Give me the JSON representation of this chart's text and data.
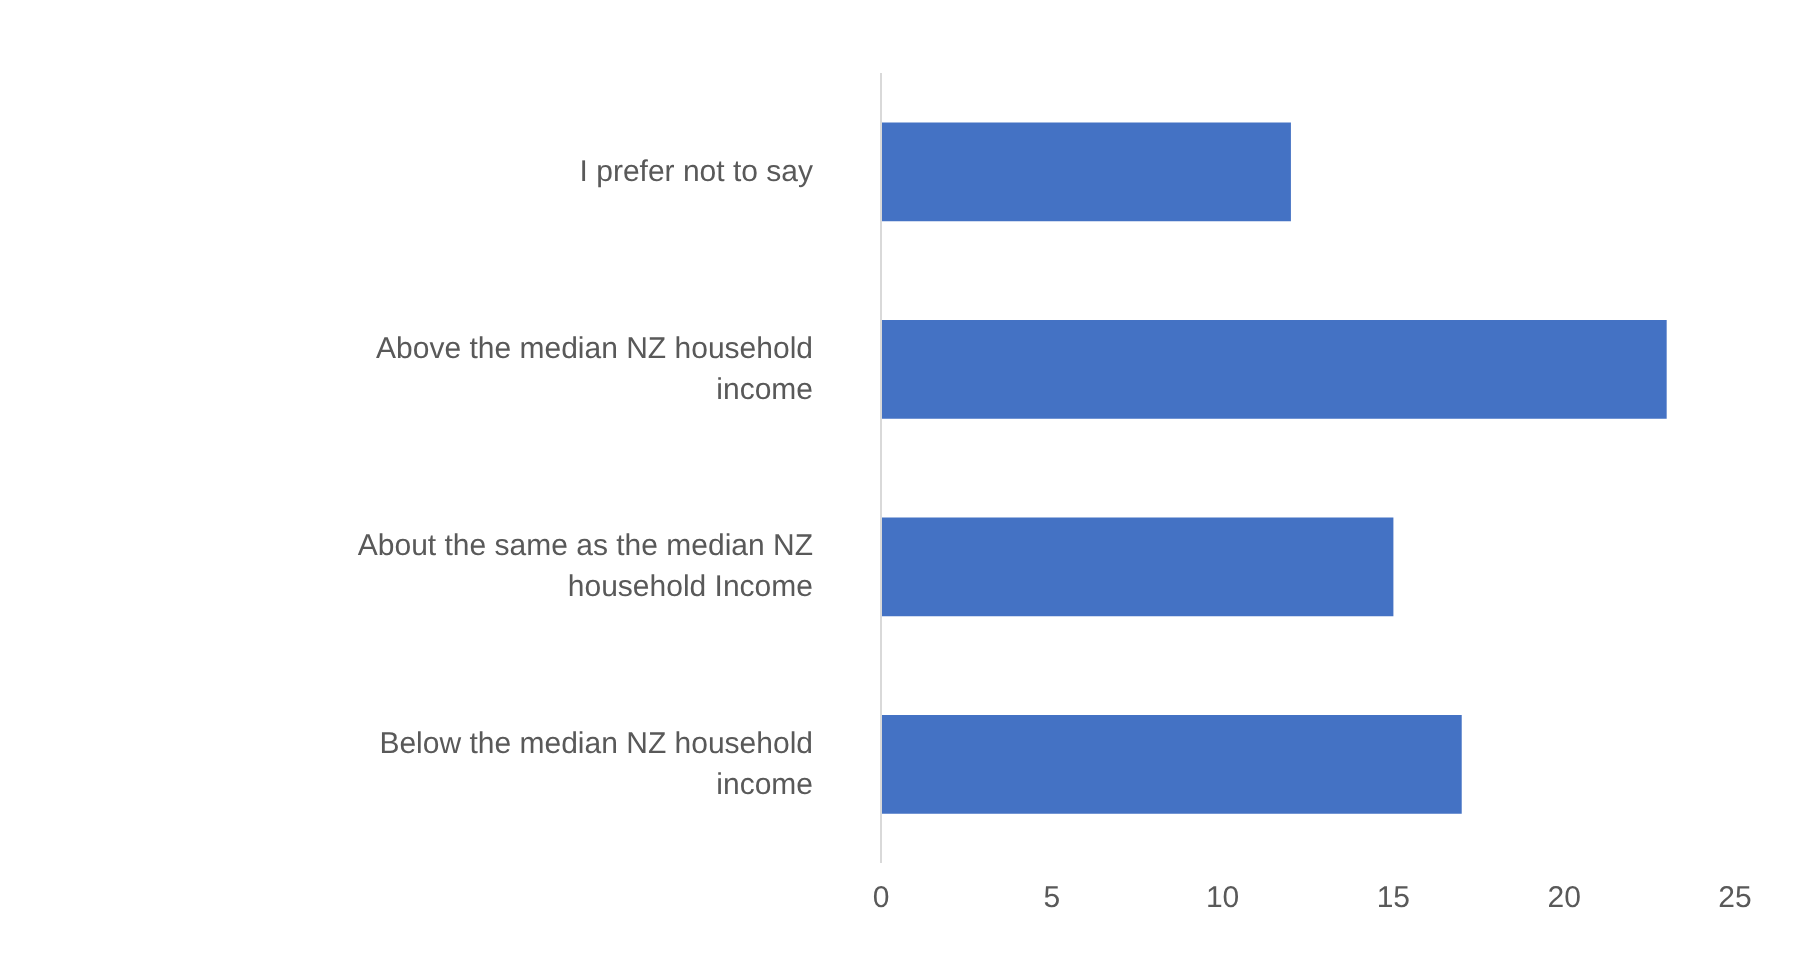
{
  "chart_data": {
    "type": "bar",
    "orientation": "horizontal",
    "categories": [
      "I prefer not to say",
      "Above the median NZ household income",
      "About the same as the median NZ household Income",
      "Below the median NZ household income"
    ],
    "values": [
      12,
      23,
      15,
      17
    ],
    "color": "#4472c4",
    "xlim": [
      0,
      25
    ],
    "xticks": [
      0,
      5,
      10,
      15,
      20,
      25
    ],
    "grid": false
  }
}
